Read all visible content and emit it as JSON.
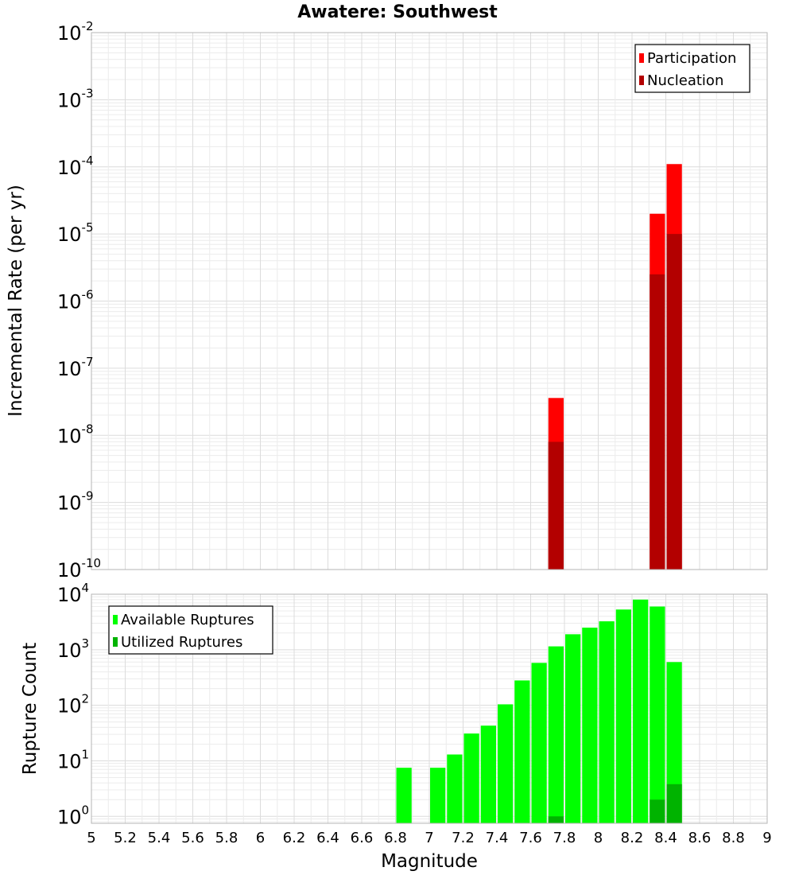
{
  "chart_data": {
    "title": "Awatere: Southwest",
    "xlabel": "Magnitude",
    "xlim": [
      5,
      9
    ],
    "xticks": [
      "5",
      "5.2",
      "5.4",
      "5.6",
      "5.8",
      "6",
      "6.2",
      "6.4",
      "6.6",
      "6.8",
      "7",
      "7.2",
      "7.4",
      "7.6",
      "7.8",
      "8",
      "8.2",
      "8.4",
      "8.6",
      "8.8",
      "9"
    ],
    "bin_width": 0.1,
    "grid": true,
    "panels": [
      {
        "type": "bar",
        "ylabel": "Incremental Rate (per yr)",
        "yscale": "log",
        "ylim": [
          1e-10,
          0.01
        ],
        "ytick_exponents": [
          "-2",
          "-3",
          "-4",
          "-5",
          "-6",
          "-7",
          "-8",
          "-9",
          "-10"
        ],
        "ytick_base": "10",
        "legend": "top-right",
        "overlay": true,
        "series": [
          {
            "name": "Participation",
            "color": "#ff0000",
            "x": [
              7.75,
              8.35,
              8.45
            ],
            "values": [
              3.6e-08,
              2e-05,
              0.00011
            ]
          },
          {
            "name": "Nucleation",
            "color": "#b30000",
            "x": [
              7.75,
              8.35,
              8.45
            ],
            "values": [
              8e-09,
              2.5e-06,
              1e-05
            ]
          }
        ]
      },
      {
        "type": "bar",
        "ylabel": "Rupture Count",
        "yscale": "log",
        "ylim": [
          0.75,
          10000
        ],
        "ytick_exponents": [
          "4",
          "3",
          "2",
          "1",
          "0"
        ],
        "ytick_base": "10",
        "legend": "top-left",
        "overlay": true,
        "series": [
          {
            "name": "Available Ruptures",
            "color": "#00ff00",
            "x": [
              6.85,
              7.05,
              7.15,
              7.25,
              7.35,
              7.45,
              7.55,
              7.65,
              7.75,
              7.85,
              7.95,
              8.05,
              8.15,
              8.25,
              8.35,
              8.45
            ],
            "values": [
              7.5,
              7.5,
              13,
              31,
              43,
              104,
              280,
              580,
              1150,
              1900,
              2500,
              3250,
              5300,
              8000,
              6000,
              600
            ]
          },
          {
            "name": "Utilized Ruptures",
            "color": "#00b300",
            "x": [
              7.75,
              8.35,
              8.45
            ],
            "values": [
              1,
              2,
              3.8
            ]
          }
        ]
      }
    ]
  }
}
